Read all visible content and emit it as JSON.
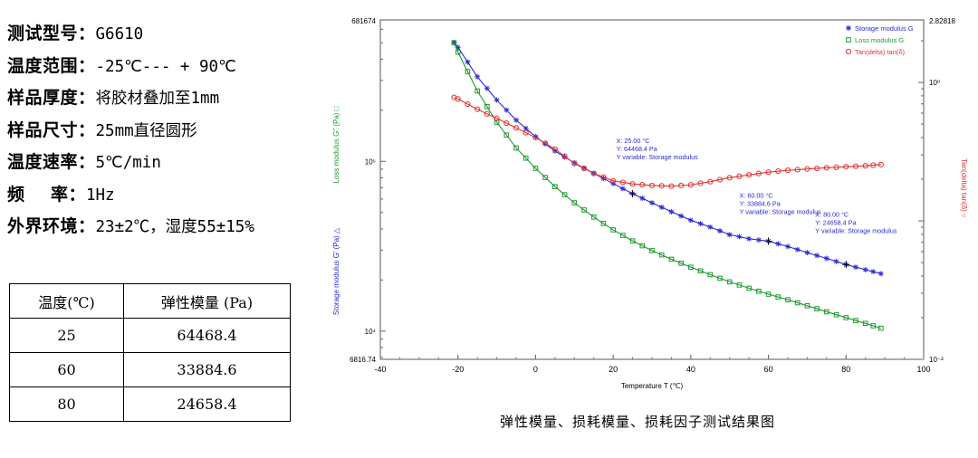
{
  "spec": [
    {
      "label": "测试型号：",
      "value": "G6610"
    },
    {
      "label": "温度范围：",
      "value": "-25℃--- + 90℃"
    },
    {
      "label": "样品厚度：",
      "value": "将胶材叠加至1mm"
    },
    {
      "label": "样品尺寸：",
      "value": "25mm直径圆形"
    },
    {
      "label": "温度速率：",
      "value": "5℃/min"
    },
    {
      "label": "频    率：",
      "value": "1Hz"
    },
    {
      "label": "外界环境：",
      "value": "23±2℃，湿度55±15%"
    }
  ],
  "table": {
    "headers": [
      "温度(℃)",
      "弹性模量 (Pa)"
    ],
    "rows": [
      [
        "25",
        "64468.4"
      ],
      [
        "60",
        "33884.6"
      ],
      [
        "80",
        "24658.4"
      ]
    ]
  },
  "caption": "弹性模量、损耗模量、损耗因子测试结果图",
  "chart_data": {
    "type": "line",
    "xlabel": "Temperature T (℃)",
    "ylabel_left_top": "Loss modulus G\" (Pa) □",
    "ylabel_left_bottom": "Storage modulus G' (Pa) △",
    "ylabel_right": "Tan(delta) tan(δ) ○",
    "xlim": [
      -40,
      100
    ],
    "xticks": [
      -40,
      -20,
      0,
      20,
      40,
      60,
      80,
      100
    ],
    "ylim": [
      6816.74,
      681674
    ],
    "yscale": "log",
    "ytick_labels": {
      "top": "681674",
      "bottom": "6816.74",
      "1e5": "10⁵",
      "1e4": "10⁴"
    },
    "y2lim": [
      0.01,
      2.82818
    ],
    "y2scale": "log",
    "y2tick_labels": {
      "top": "2.82818",
      "1e0": "10⁰",
      "bottom": "10⁻²"
    },
    "legend_position": "top-right",
    "x": [
      -21,
      -20,
      -15,
      -10,
      -5,
      0,
      5,
      10,
      15,
      20,
      25,
      30,
      35,
      40,
      45,
      50,
      55,
      60,
      65,
      70,
      75,
      80,
      85,
      89
    ],
    "series": [
      {
        "name": "Storage modulus G",
        "color": "#2b2bd6",
        "marker": "star",
        "axis": "left",
        "values": [
          502000,
          470000,
          315000,
          230000,
          175000,
          140000,
          115000,
          98000,
          85000,
          74000,
          64468,
          57000,
          50500,
          45000,
          41000,
          37000,
          35000,
          33884,
          31500,
          29000,
          26800,
          24658,
          23000,
          21800
        ]
      },
      {
        "name": "Loss modulus G",
        "color": "#1f9a2e",
        "marker": "square",
        "axis": "left",
        "values": [
          500000,
          440000,
          260000,
          170000,
          120000,
          91000,
          71000,
          57000,
          47000,
          39500,
          34000,
          29800,
          26500,
          23800,
          21500,
          19500,
          17900,
          16500,
          15300,
          14100,
          13000,
          12000,
          11100,
          10400
        ]
      },
      {
        "name": "Tan(delta) tan(δ)",
        "color": "#e23333",
        "marker": "circle",
        "axis": "right",
        "values": [
          0.78,
          0.76,
          0.64,
          0.55,
          0.47,
          0.4,
          0.33,
          0.26,
          0.22,
          0.195,
          0.185,
          0.18,
          0.178,
          0.182,
          0.192,
          0.205,
          0.215,
          0.225,
          0.232,
          0.237,
          0.242,
          0.246,
          0.25,
          0.255
        ]
      }
    ],
    "annotations": [
      {
        "lines": [
          "X: 25.00 °C",
          "Y: 64468.4 Pa",
          "Y variable: Storage modulus"
        ],
        "x": 25,
        "y": 64468.4
      },
      {
        "lines": [
          "X: 60.00 °C",
          "Y: 33884.6 Pa",
          "Y variable: Storage modulus"
        ],
        "x": 60,
        "y": 33884.6
      },
      {
        "lines": [
          "X: 80.00 °C",
          "Y: 24658.4 Pa",
          "Y variable: Storage modulus"
        ],
        "x": 80,
        "y": 24658.4
      }
    ]
  }
}
